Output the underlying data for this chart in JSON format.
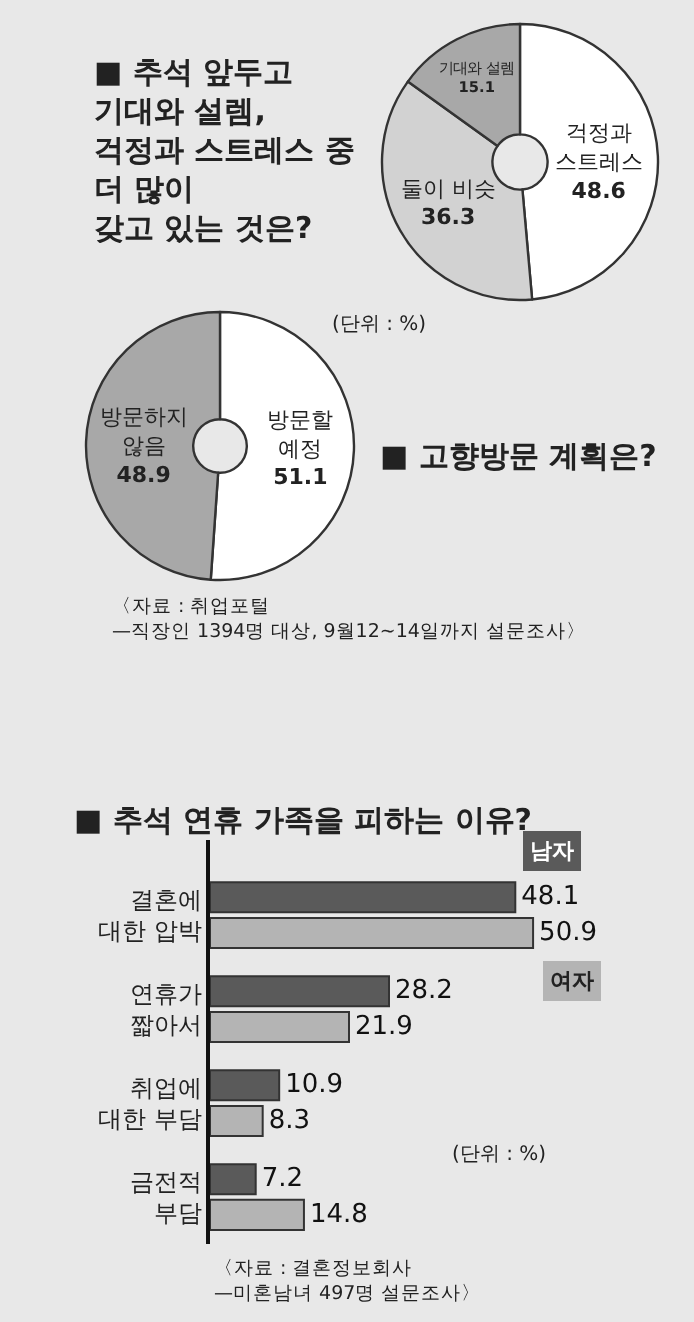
{
  "chart_data": [
    {
      "type": "donut",
      "title": "■ 추석 앞두고\n기대와 설렘,\n걱정과 스트레스 중\n더 많이\n갖고 있는 것은?",
      "categories": [
        "걱정과\n스트레스",
        "둘이 비슷",
        "기대와 설렘"
      ],
      "values": [
        48.6,
        36.3,
        15.1
      ],
      "colors": [
        "#ffffff",
        "#d2d2d2",
        "#a8a8a8"
      ],
      "data_labels": true
    },
    {
      "type": "donut",
      "title": "■ 고향방문 계획은?",
      "categories": [
        "방문할\n예정",
        "방문하지\n않음"
      ],
      "values": [
        51.1,
        48.9
      ],
      "colors": [
        "#ffffff",
        "#a8a8a8"
      ],
      "data_labels": true,
      "annotations": [
        "(단위 : %)",
        "〈자료 : 취업포털 —직장인 1394명 대상, 9월12~14일까지 설문조사〉"
      ]
    },
    {
      "type": "bar",
      "orientation": "horizontal",
      "title": "■ 추석 연휴 가족을 피하는 이유?",
      "categories": [
        "결혼에\n대한 압박",
        "연휴가\n짧아서",
        "취업에\n대한 부담",
        "금전적\n부담"
      ],
      "data_labels": true,
      "series": [
        {
          "name": "남자",
          "color": "#5a5a5a",
          "values": [
            48.1,
            28.2,
            10.9,
            7.2
          ]
        },
        {
          "name": "여자",
          "color": "#b4b4b4",
          "values": [
            50.9,
            21.9,
            8.3,
            14.8
          ]
        }
      ],
      "annotations": [
        "(단위 : %)",
        "〈자료 : 결혼정보회사 —미혼남녀 497명 설문조사〉"
      ]
    }
  ]
}
